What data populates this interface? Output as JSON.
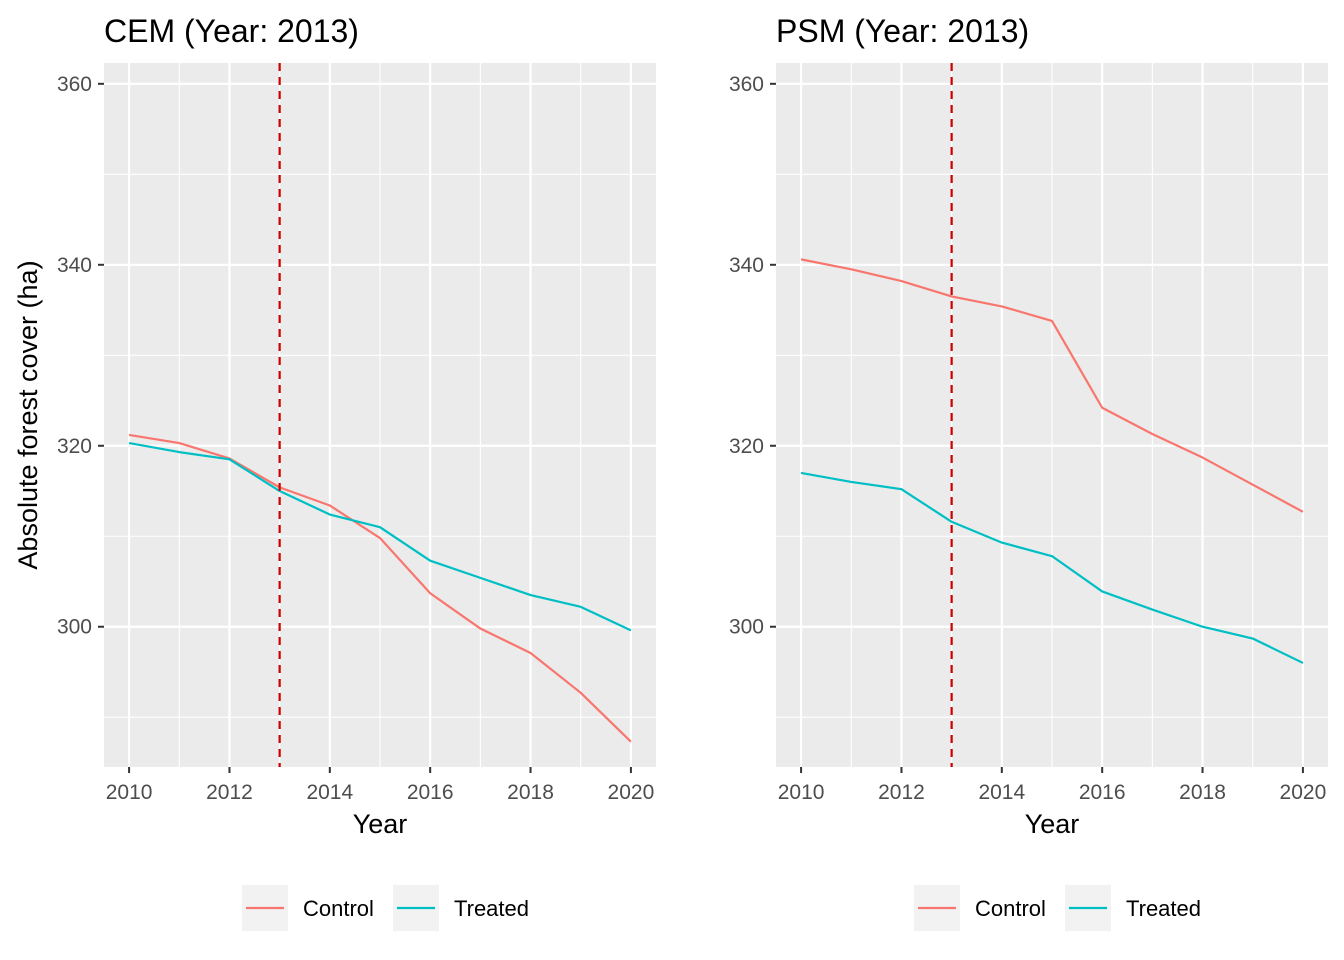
{
  "figure": {
    "ylabel": "Absolute forest cover (ha)"
  },
  "colors": {
    "Control": "#F8766D",
    "Treated": "#00BFC4",
    "vline": "#CC0000",
    "panel_bg": "#EBEBEB",
    "grid": "#FFFFFF"
  },
  "chart_data": [
    {
      "type": "line",
      "title": "CEM (Year: 2013)",
      "xlabel": "Year",
      "ylabel": "Absolute forest cover (ha)",
      "xlim": [
        2009.5,
        2020.5
      ],
      "ylim": [
        284.5,
        362.3
      ],
      "x_ticks": [
        2010,
        2012,
        2014,
        2016,
        2018,
        2020
      ],
      "y_ticks": [
        300,
        320,
        340,
        360
      ],
      "vline_x": 2013,
      "x": [
        2010,
        2011,
        2012,
        2013,
        2014,
        2015,
        2016,
        2017,
        2018,
        2019,
        2020
      ],
      "series": [
        {
          "name": "Control",
          "values": [
            321.2,
            320.3,
            318.6,
            315.4,
            313.4,
            309.8,
            303.7,
            299.8,
            297.1,
            292.7,
            287.3
          ]
        },
        {
          "name": "Treated",
          "values": [
            320.3,
            319.3,
            318.5,
            315.0,
            312.4,
            311.0,
            307.3,
            305.4,
            303.5,
            302.2,
            299.6
          ]
        }
      ],
      "legend": {
        "position": "bottom",
        "entries": [
          "Control",
          "Treated"
        ]
      },
      "grid": true
    },
    {
      "type": "line",
      "title": "PSM (Year: 2013)",
      "xlabel": "Year",
      "ylabel": "",
      "xlim": [
        2009.5,
        2020.5
      ],
      "ylim": [
        284.5,
        362.3
      ],
      "x_ticks": [
        2010,
        2012,
        2014,
        2016,
        2018,
        2020
      ],
      "y_ticks": [
        300,
        320,
        340,
        360
      ],
      "vline_x": 2013,
      "x": [
        2010,
        2011,
        2012,
        2013,
        2014,
        2015,
        2016,
        2017,
        2018,
        2019,
        2020
      ],
      "series": [
        {
          "name": "Control",
          "values": [
            340.6,
            339.5,
            338.2,
            336.5,
            335.4,
            333.8,
            324.2,
            321.3,
            318.7,
            315.7,
            312.7
          ]
        },
        {
          "name": "Treated",
          "values": [
            317.0,
            316.0,
            315.2,
            311.6,
            309.3,
            307.8,
            303.9,
            301.9,
            300.0,
            298.7,
            296.0
          ]
        }
      ],
      "legend": {
        "position": "bottom",
        "entries": [
          "Control",
          "Treated"
        ]
      },
      "grid": true
    }
  ]
}
